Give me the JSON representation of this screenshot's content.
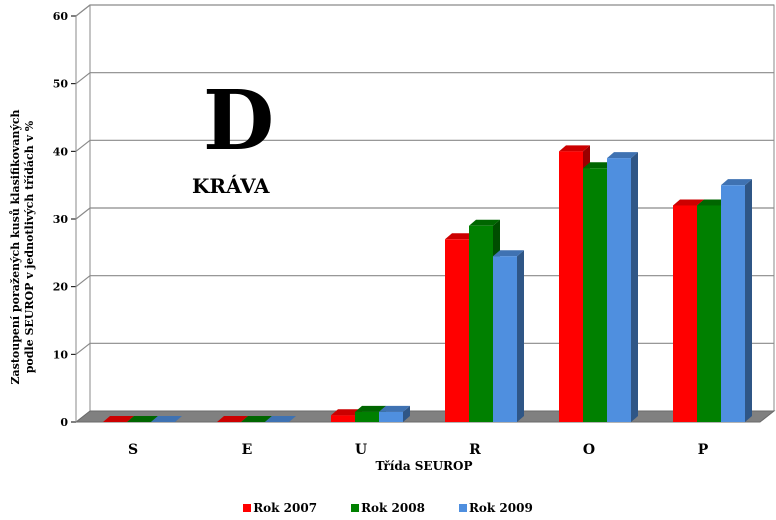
{
  "overlay": {
    "letter": "D",
    "label": "KRÁVA"
  },
  "chart_data": {
    "type": "bar",
    "title": "",
    "xlabel": "Třída SEUROP",
    "ylabel_line1": "Zastoupení poražených kusů klasifikovaných",
    "ylabel_line2": "podle SEUROP v jednotlivých třídách v %",
    "ylim": [
      0,
      60
    ],
    "yticks": [
      "0",
      "10",
      "20",
      "30",
      "40",
      "50",
      "60"
    ],
    "categories": [
      "S",
      "E",
      "U",
      "R",
      "O",
      "P"
    ],
    "series": [
      {
        "name": "Rok 2007",
        "color": "#ff0000",
        "values": [
          0,
          0,
          1,
          27,
          40,
          32
        ]
      },
      {
        "name": "Rok 2008",
        "color": "#008000",
        "values": [
          0,
          0,
          1.5,
          29,
          37.5,
          32
        ]
      },
      {
        "name": "Rok 2009",
        "color": "#4f8fdf",
        "values": [
          0,
          0,
          1.5,
          24.5,
          39,
          35
        ]
      }
    ],
    "grid": true,
    "legend_position": "bottom"
  }
}
